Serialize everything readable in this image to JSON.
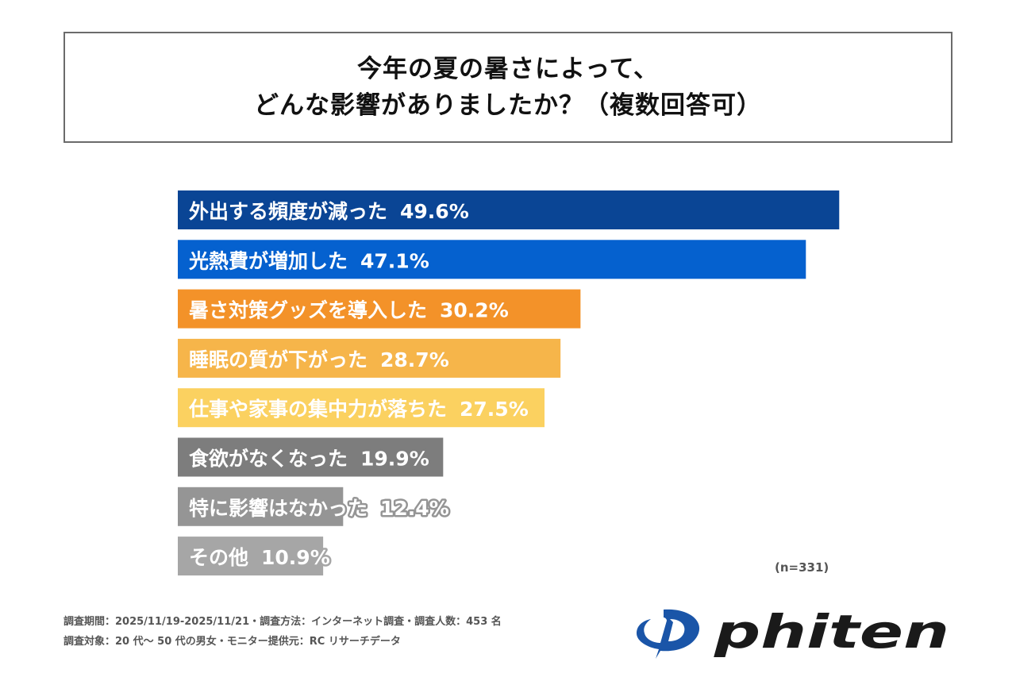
{
  "title": {
    "line1": "今年の夏の暑さによって、",
    "line2": "どんな影響がありましたか？（複数回答可）"
  },
  "chart_data": {
    "type": "bar",
    "orientation": "horizontal",
    "title": "今年の夏の暑さによって、どんな影響がありましたか？（複数回答可）",
    "xlabel": "",
    "ylabel": "",
    "unit": "%",
    "xlim": [
      0,
      50
    ],
    "grid": false,
    "categories": [
      "外出する頻度が減った",
      "光熱費が増加した",
      "暑さ対策グッズを導入した",
      "睡眠の質が下がった",
      "仕事や家事の集中力が落ちた",
      "食欲がなくなった",
      "特に影響はなかった",
      "その他"
    ],
    "values": [
      49.6,
      47.1,
      30.2,
      28.7,
      27.5,
      19.9,
      12.4,
      10.9
    ],
    "value_labels": [
      "49.6%",
      "47.1%",
      "30.2%",
      "28.7%",
      "27.5%",
      "19.9%",
      "12.4%",
      "10.9%"
    ],
    "colors": [
      "#0a4595",
      "#0561cf",
      "#f39229",
      "#f6b54a",
      "#fbd160",
      "#7d7d7d",
      "#959595",
      "#a6a6a6"
    ],
    "sample_size": "(n=331)"
  },
  "footnotes": {
    "line1": "調査期間：2025/11/19-2025/11/21・調査方法：インターネット調査・調査人数：453 名",
    "line2": "調査対象：20 代～ 50 代の男女・モニター提供元：RC リサーチデータ"
  },
  "logo": {
    "text": "phiten",
    "icon": "phiten-logo-icon",
    "color": "#1a55a8"
  }
}
